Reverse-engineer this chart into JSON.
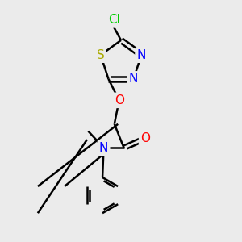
{
  "bg_color": "#ebebeb",
  "bond_color": "#000000",
  "bond_width": 1.8,
  "atom_colors": {
    "Cl": "#00cc00",
    "S": "#aaaa00",
    "N": "#0000ff",
    "O": "#ff0000",
    "C": "#000000"
  },
  "font_size": 11,
  "fig_size": [
    3.0,
    3.0
  ],
  "dpi": 100
}
